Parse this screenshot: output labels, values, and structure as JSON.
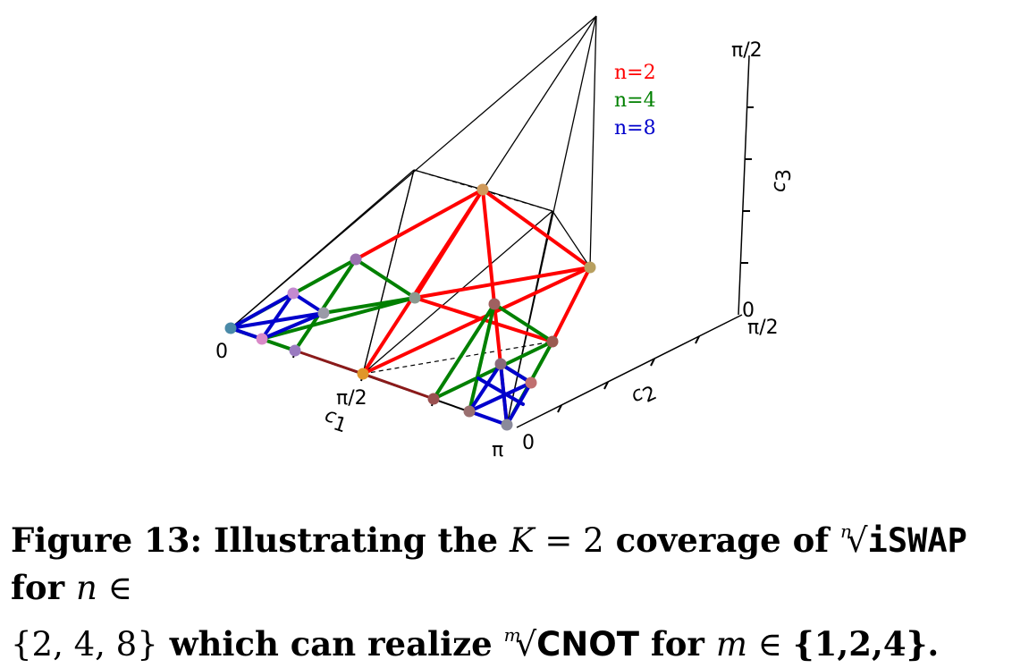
{
  "figure": {
    "legend": [
      {
        "label": "n=2",
        "color": "#ff0000"
      },
      {
        "label": "n=4",
        "color": "#008000"
      },
      {
        "label": "n=8",
        "color": "#0000cc"
      }
    ],
    "axes": {
      "c1": {
        "label": "c",
        "sub": "1",
        "ticks": [
          "0",
          "π/2",
          "π"
        ]
      },
      "c2": {
        "label": "c",
        "sub": "2",
        "ticks": [
          "0",
          "π/2"
        ]
      },
      "c3": {
        "label": "c",
        "sub": "3",
        "ticks": [
          "0",
          "π/2"
        ]
      }
    }
  },
  "caption": {
    "line1_a": "Figure 13: Illustrating the ",
    "line1_k": "K",
    "line1_eq": " = 2",
    "line1_b": " coverage of ",
    "line1_root_index": "n",
    "line1_gate": "iSWAP",
    "line1_c": " for ",
    "line1_n": "n",
    "line1_in": " ∈",
    "line2_set": "{2, 4, 8}",
    "line2_a": " which can realize ",
    "line2_root_index": "m",
    "line2_gate": "CNOT",
    "line2_b": " for ",
    "line2_m": "m",
    "line2_in": " ∈ ",
    "line2_set2": "{1,2,4}."
  }
}
